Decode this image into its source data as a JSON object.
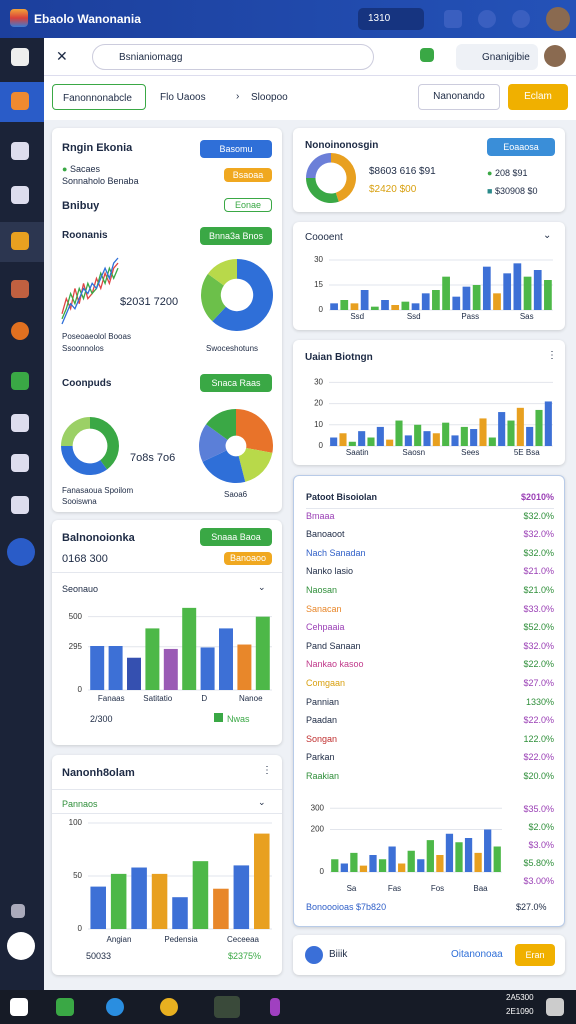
{
  "titlebar": {
    "title": "Ebaolo Wanonania",
    "chip": "1310"
  },
  "toolbar": {
    "search": "Bsnianiomagg",
    "account": "Gnanigibie"
  },
  "tabs": {
    "items": [
      "Fanonnonabcle",
      "Flo Uaoos",
      "Sloopoo"
    ],
    "secondary": "Nanonando",
    "primary": "Eclam"
  },
  "left": {
    "card1": {
      "title": "Rngin Ekonia",
      "button": "Basomu",
      "legend": [
        "Sacaes",
        "Sonnaholo Benaba"
      ],
      "chip": "Bsaoaa",
      "heading": "Bnibuy",
      "chip2": "Eonae",
      "subheading": "Roonanis",
      "button2": "Bnna3a Bnos",
      "line": {
        "series": [
          {
            "color": "#e04545",
            "values": [
              3,
              6,
              4,
              8,
              5,
              9,
              6,
              7,
              10,
              8,
              11,
              9,
              12,
              13
            ]
          },
          {
            "color": "#3aa845",
            "values": [
              2,
              4,
              7,
              5,
              8,
              6,
              9,
              7,
              8,
              11,
              9,
              12,
              10,
              12
            ]
          },
          {
            "color": "#2f6fd8",
            "values": [
              1,
              3,
              5,
              4,
              6,
              8,
              7,
              9,
              8,
              10,
              12,
              10,
              13,
              14
            ]
          }
        ]
      },
      "amount": "$2031 7200",
      "donut1": {
        "values": [
          62,
          23,
          15
        ],
        "colors": [
          "#2f6fd8",
          "#6cc04a",
          "#b8d94a"
        ]
      },
      "caption1": [
        "Poseoaeolol Booas",
        "Ssoonnolos"
      ],
      "caption2": "Swoceshotuns",
      "section2": "Coonpuds",
      "button3": "Snaca Raas",
      "donut2": {
        "values": [
          40,
          35,
          25
        ],
        "colors": [
          "#3aa845",
          "#2f6fd8",
          "#9bd066"
        ]
      },
      "amount2": "7o8s 7o6",
      "pie3": {
        "values": [
          28,
          18,
          22,
          17,
          15
        ],
        "colors": [
          "#e8732a",
          "#b8d94a",
          "#2f6fd8",
          "#5b7fd8",
          "#3aa845"
        ]
      },
      "caption3": [
        "Fanasaoua Spoilom",
        "Sooiswna"
      ],
      "caption4": "Saoa6"
    },
    "card2": {
      "title": "Balnonoionka",
      "button": "Snaaa Baoa",
      "amount": "0168 300",
      "chip": "Banoaoo",
      "dropdown": "Seonauo",
      "chart": {
        "values": [
          300,
          300,
          220,
          420,
          280,
          560,
          290,
          420,
          310,
          500
        ],
        "colors": [
          "#3d70d6",
          "#3d70d6",
          "#3550b0",
          "#4db848",
          "#9a5bb5",
          "#4db848",
          "#3d70d6",
          "#3d70d6",
          "#e8872a",
          "#4db848"
        ],
        "ylim": [
          0,
          600
        ],
        "yticks": [
          0,
          295,
          500
        ]
      },
      "labels": [
        "Fanaas",
        "Satitatio",
        "D",
        "Nanoe"
      ],
      "footer": "2/300",
      "badge": "Nwas"
    },
    "card3": {
      "title": "Nanonh8olam",
      "dropdown": "Pannaos",
      "chart": {
        "values": [
          40,
          52,
          58,
          52,
          30,
          64,
          38,
          60,
          90
        ],
        "colors": [
          "#3d70d6",
          "#4db848",
          "#3d70d6",
          "#e8a020",
          "#3d70d6",
          "#4db848",
          "#e8872a",
          "#3d70d6",
          "#e8a020"
        ],
        "ylim": [
          0,
          100
        ],
        "yticks": [
          0,
          50,
          100
        ]
      },
      "labels": [
        "Angian",
        "Pedensia",
        "Ceceeaa"
      ],
      "footer": [
        "50033",
        "$2375%"
      ]
    }
  },
  "right": {
    "cardA": {
      "title": "Nonoinonosgin",
      "button": "Eoaaosa",
      "amount": "$8603 616 $91",
      "sub": "$2420 $00",
      "stats": [
        "208 $91",
        "$30908 $0"
      ],
      "donut": {
        "values": [
          45,
          30,
          25
        ],
        "colors": [
          "#e8a020",
          "#3aa845",
          "#6c7fd8"
        ]
      }
    },
    "cardB": {
      "title": "Coooent",
      "chart": {
        "values": [
          4,
          6,
          4,
          12,
          2,
          6,
          3,
          5,
          4,
          10,
          12,
          20,
          8,
          14,
          15,
          26,
          10,
          22,
          28,
          20,
          24,
          18
        ],
        "colors": [
          "#3d70d6",
          "#4db848",
          "#e8a020",
          "#3d70d6",
          "#4db848",
          "#3d70d6",
          "#e8a020",
          "#4db848",
          "#3d70d6",
          "#3d70d6",
          "#4db848",
          "#4db848",
          "#3d70d6",
          "#3d70d6",
          "#4db848",
          "#3d70d6",
          "#e8a020",
          "#3d70d6",
          "#3d70d6",
          "#4db848",
          "#3d70d6",
          "#4db848"
        ],
        "ylim": [
          0,
          36
        ],
        "yticks": [
          0,
          15,
          30
        ]
      },
      "labels": [
        "Ssd",
        "Ssd",
        "Pass",
        "Sas"
      ]
    },
    "cardC": {
      "title": "Uaian Biotngn",
      "chart": {
        "values": [
          4,
          6,
          2,
          7,
          4,
          9,
          3,
          12,
          5,
          10,
          7,
          6,
          11,
          5,
          9,
          8,
          13,
          4,
          16,
          12,
          18,
          9,
          17,
          21
        ],
        "colors": [
          "#3d70d6",
          "#e8a020",
          "#4db848",
          "#3d70d6",
          "#4db848",
          "#3d70d6",
          "#e8a020",
          "#4db848",
          "#3d70d6",
          "#4db848",
          "#3d70d6",
          "#e8a020",
          "#4db848",
          "#3d70d6",
          "#4db848",
          "#3d70d6",
          "#e8a020",
          "#4db848",
          "#3d70d6",
          "#4db848",
          "#e8a020",
          "#3d70d6",
          "#4db848",
          "#3d70d6"
        ],
        "ylim": [
          0,
          33
        ],
        "yticks": [
          0,
          10,
          20,
          30
        ]
      },
      "labels": [
        "Saatin",
        "Saosn",
        "Sees",
        "5E Bsa"
      ]
    },
    "cardD": {
      "rows": [
        {
          "label": "Patoot Bisoiolan",
          "value": "$2010%",
          "color": "#1d2a44"
        },
        {
          "label": "Bmaaa",
          "value": "$32.0%",
          "color": "#9a3fb5"
        },
        {
          "label": "Banoaoot",
          "value": "$32.0%",
          "color": "#1d2a44"
        },
        {
          "label": "Nach Sanadan",
          "value": "$32.0%",
          "color": "#2f5fc8"
        },
        {
          "label": "Nanko lasio",
          "value": "$21.0%",
          "color": "#1d2a44"
        },
        {
          "label": "Naosan",
          "value": "$21.0%",
          "color": "#2f8f3a"
        },
        {
          "label": "Sanacan",
          "value": "$33.0%",
          "color": "#e8872a"
        },
        {
          "label": "Cehpaaia",
          "value": "$52.0%",
          "color": "#9a3fb5"
        },
        {
          "label": "Pand Sanaan",
          "value": "$32.0%",
          "color": "#1d2a44"
        },
        {
          "label": "Nankao kasoo",
          "value": "$22.0%",
          "color": "#c0398a"
        },
        {
          "label": "Comgaan",
          "value": "$27.0%",
          "color": "#d8a010"
        },
        {
          "label": "Pannian",
          "value": "1330%",
          "color": "#1d2a44"
        },
        {
          "label": "Paadan",
          "value": "$22.0%",
          "color": "#1d2a44"
        },
        {
          "label": "Songan",
          "value": "122.0%",
          "color": "#c03030"
        },
        {
          "label": "Parkan",
          "value": "$22.0%",
          "color": "#1d2a44"
        },
        {
          "label": "Raakian",
          "value": "$20.0%",
          "color": "#2f8f3a"
        }
      ],
      "side": [
        "$35.0%",
        "$2.0%",
        "$3.0%",
        "$5.80%",
        "$3.00%"
      ],
      "chart": {
        "values": [
          60,
          40,
          90,
          30,
          80,
          60,
          120,
          40,
          100,
          60,
          150,
          80,
          180,
          140,
          160,
          90,
          200,
          120
        ],
        "colors": [
          "#4db848",
          "#3d70d6",
          "#4db848",
          "#e8a020",
          "#3d70d6",
          "#4db848",
          "#3d70d6",
          "#e8a020",
          "#4db848",
          "#3d70d6",
          "#4db848",
          "#e8a020",
          "#3d70d6",
          "#4db848",
          "#3d70d6",
          "#e8a020",
          "#3d70d6",
          "#4db848"
        ],
        "ylim": [
          0,
          320
        ],
        "yticks": [
          0,
          200,
          300
        ]
      },
      "labels": [
        "Sa",
        "Fas",
        "Fos",
        "Baa"
      ],
      "footer": [
        "Bonoooioas $7b820",
        "$27.0%"
      ]
    },
    "cardE": {
      "label": "Biiik",
      "link": "Oitanonoaa",
      "button": "Eran"
    }
  },
  "taskbar": {
    "clock": [
      "2A5300",
      "2E1090"
    ]
  }
}
